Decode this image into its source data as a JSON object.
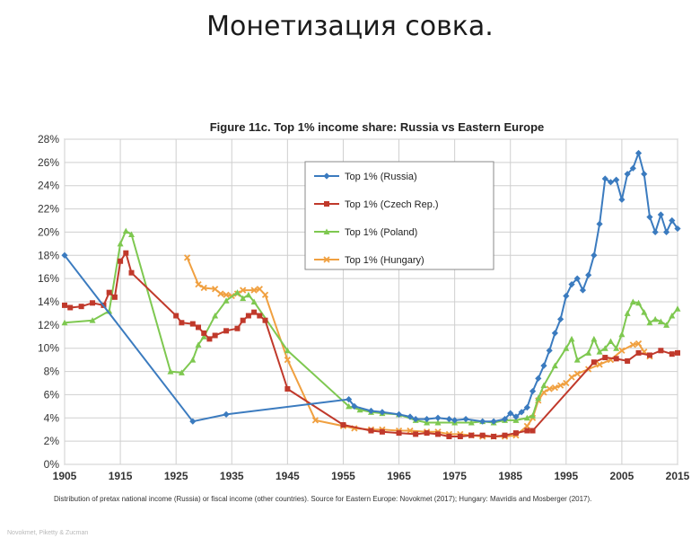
{
  "slide": {
    "title": "Монетизация совка.",
    "source_credit": "Novokmet, Piketty & Zucman"
  },
  "note": "Distribution of pretax national income (Russia) or fiscal income (other countries). Source for Eastern Europe: Novokmet (2017); Hungary: Mavridis and Mosberger (2017).",
  "chart_data": {
    "type": "line",
    "title": "Figure 11c. Top 1% income share: Russia vs Eastern Europe",
    "xlabel": "",
    "ylabel": "",
    "xlim": [
      1905,
      2015
    ],
    "ylim": [
      0,
      0.28
    ],
    "x_ticks": [
      "1905",
      "1915",
      "1925",
      "1935",
      "1945",
      "1955",
      "1965",
      "1975",
      "1985",
      "1995",
      "2005",
      "2015"
    ],
    "y_ticks": [
      "0%",
      "2%",
      "4%",
      "6%",
      "8%",
      "10%",
      "12%",
      "14%",
      "16%",
      "18%",
      "20%",
      "22%",
      "24%",
      "26%",
      "28%"
    ],
    "grid": true,
    "legend_position": "top-center",
    "series": [
      {
        "name": "Top 1% (Russia)",
        "color": "#3b7bbf",
        "marker": "diamond",
        "points": [
          [
            1905,
            0.18
          ],
          [
            1928,
            0.037
          ],
          [
            1934,
            0.043
          ],
          [
            1956,
            0.056
          ],
          [
            1957,
            0.05
          ],
          [
            1960,
            0.046
          ],
          [
            1962,
            0.045
          ],
          [
            1965,
            0.043
          ],
          [
            1967,
            0.041
          ],
          [
            1968,
            0.039
          ],
          [
            1970,
            0.039
          ],
          [
            1972,
            0.04
          ],
          [
            1974,
            0.039
          ],
          [
            1975,
            0.038
          ],
          [
            1977,
            0.039
          ],
          [
            1980,
            0.037
          ],
          [
            1982,
            0.037
          ],
          [
            1984,
            0.039
          ],
          [
            1985,
            0.044
          ],
          [
            1986,
            0.041
          ],
          [
            1987,
            0.045
          ],
          [
            1988,
            0.049
          ],
          [
            1989,
            0.063
          ],
          [
            1990,
            0.074
          ],
          [
            1991,
            0.085
          ],
          [
            1992,
            0.098
          ],
          [
            1993,
            0.113
          ],
          [
            1994,
            0.125
          ],
          [
            1995,
            0.145
          ],
          [
            1996,
            0.155
          ],
          [
            1997,
            0.16
          ],
          [
            1998,
            0.15
          ],
          [
            1999,
            0.163
          ],
          [
            2000,
            0.18
          ],
          [
            2001,
            0.207
          ],
          [
            2002,
            0.246
          ],
          [
            2003,
            0.243
          ],
          [
            2004,
            0.245
          ],
          [
            2005,
            0.228
          ],
          [
            2006,
            0.25
          ],
          [
            2007,
            0.255
          ],
          [
            2008,
            0.268
          ],
          [
            2009,
            0.25
          ],
          [
            2010,
            0.213
          ],
          [
            2011,
            0.2
          ],
          [
            2012,
            0.215
          ],
          [
            2013,
            0.2
          ],
          [
            2014,
            0.21
          ],
          [
            2015,
            0.203
          ]
        ]
      },
      {
        "name": "Top 1% (Czech Rep.)",
        "color": "#c0392b",
        "marker": "square",
        "points": [
          [
            1905,
            0.137
          ],
          [
            1906,
            0.135
          ],
          [
            1908,
            0.136
          ],
          [
            1910,
            0.139
          ],
          [
            1912,
            0.137
          ],
          [
            1913,
            0.148
          ],
          [
            1914,
            0.144
          ],
          [
            1915,
            0.175
          ],
          [
            1916,
            0.182
          ],
          [
            1917,
            0.165
          ],
          [
            1925,
            0.128
          ],
          [
            1926,
            0.122
          ],
          [
            1928,
            0.121
          ],
          [
            1929,
            0.118
          ],
          [
            1930,
            0.113
          ],
          [
            1931,
            0.108
          ],
          [
            1932,
            0.111
          ],
          [
            1934,
            0.115
          ],
          [
            1936,
            0.117
          ],
          [
            1937,
            0.124
          ],
          [
            1938,
            0.128
          ],
          [
            1939,
            0.131
          ],
          [
            1940,
            0.128
          ],
          [
            1941,
            0.124
          ],
          [
            1945,
            0.065
          ],
          [
            1955,
            0.034
          ],
          [
            1960,
            0.029
          ],
          [
            1962,
            0.028
          ],
          [
            1965,
            0.027
          ],
          [
            1968,
            0.026
          ],
          [
            1970,
            0.027
          ],
          [
            1972,
            0.026
          ],
          [
            1974,
            0.024
          ],
          [
            1976,
            0.024
          ],
          [
            1978,
            0.025
          ],
          [
            1980,
            0.025
          ],
          [
            1982,
            0.024
          ],
          [
            1984,
            0.025
          ],
          [
            1986,
            0.027
          ],
          [
            1988,
            0.029
          ],
          [
            1989,
            0.029
          ],
          [
            2000,
            0.088
          ],
          [
            2002,
            0.092
          ],
          [
            2004,
            0.091
          ],
          [
            2006,
            0.089
          ],
          [
            2008,
            0.096
          ],
          [
            2010,
            0.094
          ],
          [
            2012,
            0.098
          ],
          [
            2014,
            0.095
          ],
          [
            2015,
            0.096
          ]
        ]
      },
      {
        "name": "Top 1% (Poland)",
        "color": "#7ec850",
        "marker": "triangle",
        "points": [
          [
            1905,
            0.122
          ],
          [
            1910,
            0.124
          ],
          [
            1913,
            0.132
          ],
          [
            1915,
            0.19
          ],
          [
            1916,
            0.201
          ],
          [
            1917,
            0.198
          ],
          [
            1924,
            0.08
          ],
          [
            1926,
            0.079
          ],
          [
            1928,
            0.09
          ],
          [
            1929,
            0.103
          ],
          [
            1930,
            0.11
          ],
          [
            1932,
            0.128
          ],
          [
            1934,
            0.141
          ],
          [
            1936,
            0.148
          ],
          [
            1937,
            0.143
          ],
          [
            1938,
            0.146
          ],
          [
            1939,
            0.14
          ],
          [
            1945,
            0.098
          ],
          [
            1956,
            0.05
          ],
          [
            1958,
            0.047
          ],
          [
            1960,
            0.045
          ],
          [
            1962,
            0.044
          ],
          [
            1965,
            0.043
          ],
          [
            1968,
            0.038
          ],
          [
            1970,
            0.036
          ],
          [
            1972,
            0.036
          ],
          [
            1975,
            0.036
          ],
          [
            1978,
            0.036
          ],
          [
            1980,
            0.037
          ],
          [
            1982,
            0.036
          ],
          [
            1984,
            0.038
          ],
          [
            1986,
            0.038
          ],
          [
            1988,
            0.04
          ],
          [
            1989,
            0.042
          ],
          [
            1990,
            0.057
          ],
          [
            1991,
            0.068
          ],
          [
            1993,
            0.085
          ],
          [
            1995,
            0.1
          ],
          [
            1996,
            0.108
          ],
          [
            1997,
            0.09
          ],
          [
            1999,
            0.096
          ],
          [
            2000,
            0.108
          ],
          [
            2001,
            0.097
          ],
          [
            2002,
            0.1
          ],
          [
            2003,
            0.106
          ],
          [
            2004,
            0.1
          ],
          [
            2005,
            0.112
          ],
          [
            2006,
            0.13
          ],
          [
            2007,
            0.14
          ],
          [
            2008,
            0.139
          ],
          [
            2009,
            0.131
          ],
          [
            2010,
            0.122
          ],
          [
            2011,
            0.125
          ],
          [
            2012,
            0.123
          ],
          [
            2013,
            0.12
          ],
          [
            2014,
            0.128
          ],
          [
            2015,
            0.134
          ]
        ]
      },
      {
        "name": "Top 1% (Hungary)",
        "color": "#f0a040",
        "marker": "cross",
        "points": [
          [
            1927,
            0.178
          ],
          [
            1929,
            0.155
          ],
          [
            1930,
            0.152
          ],
          [
            1932,
            0.151
          ],
          [
            1933,
            0.147
          ],
          [
            1934,
            0.146
          ],
          [
            1935,
            0.145
          ],
          [
            1936,
            0.147
          ],
          [
            1937,
            0.15
          ],
          [
            1939,
            0.15
          ],
          [
            1940,
            0.151
          ],
          [
            1941,
            0.146
          ],
          [
            1945,
            0.09
          ],
          [
            1950,
            0.038
          ],
          [
            1955,
            0.033
          ],
          [
            1957,
            0.031
          ],
          [
            1960,
            0.03
          ],
          [
            1962,
            0.03
          ],
          [
            1965,
            0.029
          ],
          [
            1967,
            0.029
          ],
          [
            1970,
            0.028
          ],
          [
            1972,
            0.028
          ],
          [
            1974,
            0.026
          ],
          [
            1976,
            0.026
          ],
          [
            1978,
            0.025
          ],
          [
            1980,
            0.024
          ],
          [
            1982,
            0.024
          ],
          [
            1984,
            0.024
          ],
          [
            1986,
            0.025
          ],
          [
            1988,
            0.033
          ],
          [
            1989,
            0.04
          ],
          [
            1990,
            0.055
          ],
          [
            1991,
            0.062
          ],
          [
            1992,
            0.065
          ],
          [
            1993,
            0.066
          ],
          [
            1994,
            0.068
          ],
          [
            1995,
            0.07
          ],
          [
            1996,
            0.075
          ],
          [
            1997,
            0.078
          ],
          [
            1999,
            0.082
          ],
          [
            2001,
            0.086
          ],
          [
            2003,
            0.09
          ],
          [
            2005,
            0.098
          ],
          [
            2007,
            0.103
          ],
          [
            2008,
            0.104
          ],
          [
            2009,
            0.097
          ],
          [
            2010,
            0.093
          ]
        ]
      }
    ]
  }
}
